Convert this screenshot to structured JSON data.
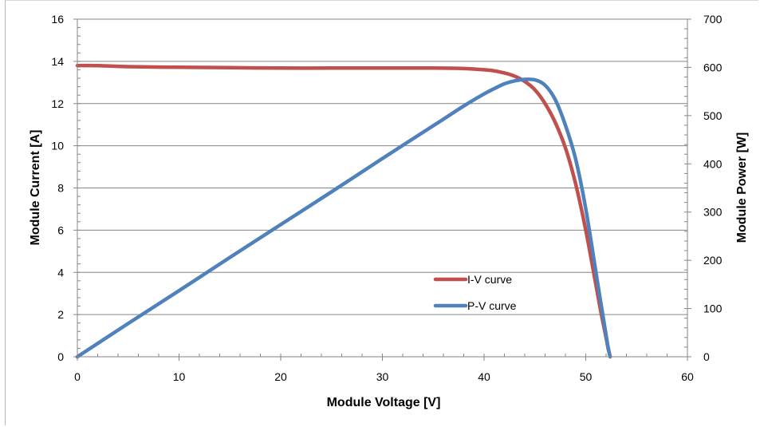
{
  "chart_data": {
    "type": "line",
    "title": "",
    "xlabel": "Module Voltage [V]",
    "ylabel": "Module Current [A]",
    "y2label": "Module Power [W]",
    "xlim": [
      0,
      60
    ],
    "ylim": [
      0,
      16
    ],
    "y2lim": [
      0,
      700
    ],
    "x_ticks": [
      "0",
      "10",
      "20",
      "30",
      "40",
      "50",
      "60"
    ],
    "y_ticks": [
      "0",
      "2",
      "4",
      "6",
      "8",
      "10",
      "12",
      "14",
      "16"
    ],
    "y2_ticks": [
      "0",
      "100",
      "200",
      "300",
      "400",
      "500",
      "600",
      "700"
    ],
    "grid": true,
    "legend_position": "lower-center",
    "series": [
      {
        "name": "I-V curve",
        "axis": "left",
        "color": "#c0504d",
        "x": [
          0,
          2,
          5,
          10,
          15,
          20,
          25,
          30,
          35,
          38,
          40,
          41,
          42,
          43,
          44,
          45,
          46,
          47,
          48,
          49,
          50,
          51,
          51.5,
          52,
          52.2,
          52.4
        ],
        "y": [
          13.8,
          13.8,
          13.75,
          13.72,
          13.7,
          13.68,
          13.68,
          13.68,
          13.68,
          13.66,
          13.6,
          13.55,
          13.45,
          13.3,
          13.05,
          12.65,
          12.0,
          11.1,
          9.9,
          8.2,
          6.0,
          3.4,
          2.1,
          0.9,
          0.4,
          0.0
        ]
      },
      {
        "name": "P-V curve",
        "axis": "right",
        "color": "#4f81bd",
        "x": [
          0,
          5,
          10,
          15,
          20,
          25,
          30,
          35,
          38,
          40,
          41,
          42,
          43,
          44,
          45,
          46,
          47,
          48,
          49,
          50,
          51,
          51.5,
          52,
          52.2,
          52.4
        ],
        "y": [
          0,
          69,
          137,
          206,
          274,
          342,
          411,
          479,
          520,
          545,
          556,
          566,
          572,
          575,
          574,
          563,
          533,
          480,
          410,
          307,
          175,
          110,
          45,
          20,
          0
        ]
      }
    ]
  }
}
